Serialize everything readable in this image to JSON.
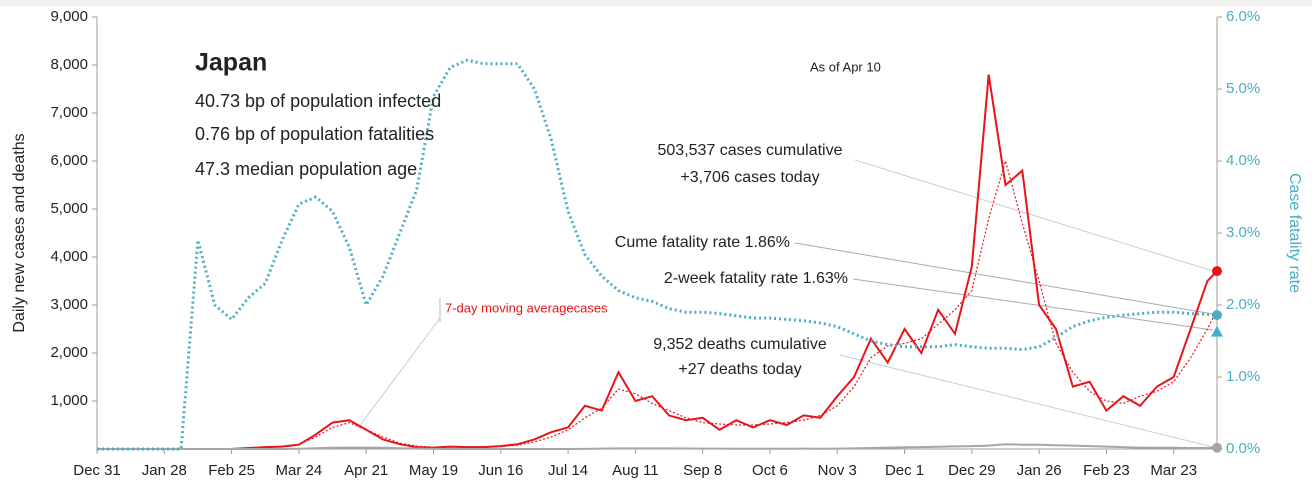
{
  "chart_data": {
    "type": "line",
    "ylabel": "Daily new cases and deaths",
    "y2label": "Case fatality rate",
    "xlim": [
      0,
      466
    ],
    "xticks": [
      {
        "value": 0,
        "label": "Dec 31"
      },
      {
        "value": 28,
        "label": "Jan 28"
      },
      {
        "value": 56,
        "label": "Feb 25"
      },
      {
        "value": 84,
        "label": "Mar 24"
      },
      {
        "value": 112,
        "label": "Apr 21"
      },
      {
        "value": 140,
        "label": "May 19"
      },
      {
        "value": 168,
        "label": "Jun 16"
      },
      {
        "value": 196,
        "label": "Jul 14"
      },
      {
        "value": 224,
        "label": "Aug 11"
      },
      {
        "value": 252,
        "label": "Sep 8"
      },
      {
        "value": 280,
        "label": "Oct 6"
      },
      {
        "value": 308,
        "label": "Nov 3"
      },
      {
        "value": 336,
        "label": "Dec 1"
      },
      {
        "value": 364,
        "label": "Dec 29"
      },
      {
        "value": 392,
        "label": "Jan 26"
      },
      {
        "value": 420,
        "label": "Feb 23"
      },
      {
        "value": 448,
        "label": "Mar 23"
      }
    ],
    "ylim": [
      0,
      9000
    ],
    "yticks": [
      {
        "value": 1000,
        "label": "1,000"
      },
      {
        "value": 2000,
        "label": "2,000"
      },
      {
        "value": 3000,
        "label": "3,000"
      },
      {
        "value": 4000,
        "label": "4,000"
      },
      {
        "value": 5000,
        "label": "5,000"
      },
      {
        "value": 6000,
        "label": "6,000"
      },
      {
        "value": 7000,
        "label": "7,000"
      },
      {
        "value": 8000,
        "label": "8,000"
      },
      {
        "value": 9000,
        "label": "9,000"
      }
    ],
    "y2lim": [
      0,
      6
    ],
    "y2ticks": [
      {
        "value": 0,
        "label": "0.0%"
      },
      {
        "value": 1,
        "label": "1.0%"
      },
      {
        "value": 2,
        "label": "2.0%"
      },
      {
        "value": 3,
        "label": "3.0%"
      },
      {
        "value": 4,
        "label": "4.0%"
      },
      {
        "value": 5,
        "label": "5.0%"
      },
      {
        "value": 6,
        "label": "6.0%"
      }
    ],
    "x": [
      0,
      7,
      14,
      21,
      28,
      35,
      42,
      49,
      56,
      63,
      70,
      77,
      84,
      91,
      98,
      105,
      112,
      119,
      126,
      133,
      140,
      147,
      154,
      161,
      168,
      175,
      182,
      189,
      196,
      203,
      210,
      217,
      224,
      231,
      238,
      245,
      252,
      259,
      266,
      273,
      280,
      287,
      294,
      301,
      308,
      315,
      322,
      329,
      336,
      343,
      350,
      357,
      364,
      371,
      378,
      385,
      392,
      399,
      406,
      413,
      420,
      427,
      434,
      441,
      448,
      455,
      462,
      466
    ],
    "series": [
      {
        "color": "#e8141b",
        "style": "solid",
        "values": [
          0,
          0,
          0,
          0,
          0,
          0,
          0,
          0,
          0,
          20,
          40,
          50,
          90,
          300,
          550,
          600,
          400,
          200,
          100,
          40,
          30,
          50,
          40,
          40,
          60,
          100,
          200,
          350,
          450,
          900,
          800,
          1600,
          1000,
          1100,
          700,
          600,
          650,
          400,
          600,
          450,
          600,
          500,
          700,
          650,
          1100,
          1500,
          2300,
          1800,
          2500,
          2000,
          2900,
          2400,
          3800,
          7800,
          5500,
          5800,
          3000,
          2500,
          1300,
          1400,
          800,
          1100,
          900,
          1300,
          1500,
          2500,
          3500,
          3706
        ]
      },
      {
        "name": "7-day moving averagecases",
        "color": "#e8141b",
        "style": "dotted",
        "values": [
          0,
          0,
          0,
          0,
          0,
          0,
          0,
          0,
          10,
          20,
          30,
          60,
          100,
          250,
          450,
          550,
          400,
          250,
          120,
          60,
          35,
          40,
          40,
          45,
          50,
          80,
          150,
          250,
          400,
          650,
          850,
          1250,
          1150,
          950,
          800,
          650,
          550,
          520,
          500,
          500,
          520,
          550,
          600,
          700,
          900,
          1300,
          1900,
          2150,
          2200,
          2300,
          2600,
          2900,
          3300,
          4800,
          6000,
          4700,
          3500,
          2200,
          1600,
          1200,
          1000,
          950,
          1100,
          1200,
          1400,
          1900,
          2500,
          2900
        ]
      },
      {
        "color": "#a6a6a6",
        "style": "solid",
        "values": [
          0,
          0,
          0,
          0,
          0,
          0,
          0,
          0,
          0,
          0,
          0,
          0,
          5,
          15,
          25,
          30,
          30,
          25,
          15,
          8,
          3,
          1,
          1,
          1,
          1,
          1,
          1,
          1,
          1,
          3,
          8,
          12,
          13,
          13,
          12,
          10,
          8,
          8,
          6,
          6,
          6,
          7,
          8,
          7,
          8,
          12,
          20,
          30,
          35,
          40,
          45,
          55,
          60,
          70,
          100,
          90,
          90,
          80,
          70,
          60,
          50,
          40,
          30,
          25,
          25,
          20,
          20,
          27
        ]
      },
      {
        "color": "#4bacc6",
        "style": "dotted",
        "axis": "y2",
        "values": [
          0,
          0,
          0,
          0,
          0,
          0,
          2.9,
          2.0,
          1.8,
          2.1,
          2.3,
          2.9,
          3.4,
          3.5,
          3.3,
          2.8,
          2.0,
          2.4,
          3.0,
          3.6,
          4.9,
          5.3,
          5.4,
          5.35,
          5.35,
          5.35,
          5.0,
          4.3,
          3.3,
          2.7,
          2.4,
          2.2,
          2.1,
          2.05,
          1.95,
          1.9,
          1.9,
          1.88,
          1.85,
          1.82,
          1.82,
          1.8,
          1.78,
          1.75,
          1.7,
          1.6,
          1.5,
          1.45,
          1.42,
          1.42,
          1.42,
          1.45,
          1.42,
          1.4,
          1.4,
          1.38,
          1.42,
          1.55,
          1.7,
          1.78,
          1.83,
          1.86,
          1.88,
          1.9,
          1.9,
          1.88,
          1.87,
          1.86
        ]
      }
    ],
    "today_markers": {
      "x": 466,
      "cases": 3706,
      "deaths": 27,
      "cume_fatality_rate": 1.86,
      "two_week_fatality_rate": 1.63
    },
    "annotations": [
      "Japan",
      "40.73 bp of population infected",
      "0.76 bp of population fatalities",
      "47.3 median population age",
      "As of Apr 10",
      "503,537 cases cumulative",
      "+3,706 cases today",
      "Cume fatality rate 1.86%",
      "2-week fatality rate 1.63%",
      "9,352 deaths cumulative",
      "+27 deaths today"
    ]
  }
}
